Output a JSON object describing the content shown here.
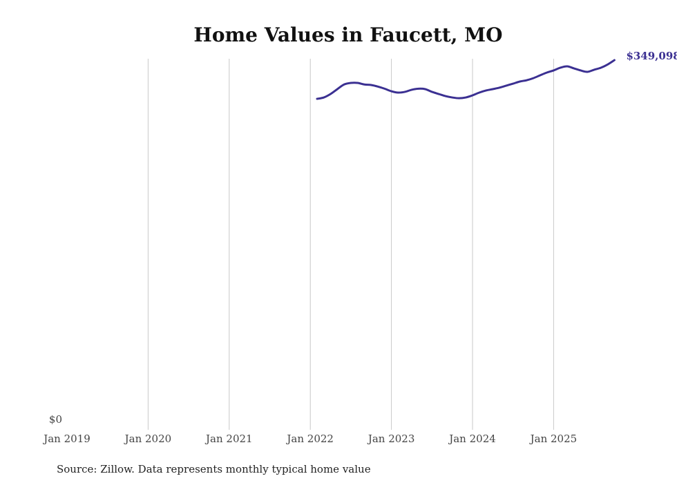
{
  "chart_data": {
    "type": "line",
    "title": "Home Values in Faucett, MO",
    "source": "Source: Zillow. Data represents monthly typical home value",
    "xlabel": "",
    "ylabel": "",
    "x_ticks": [
      "Jan 2019",
      "Jan 2020",
      "Jan 2021",
      "Jan 2022",
      "Jan 2023",
      "Jan 2024",
      "Jan 2025"
    ],
    "y_ticks": [
      "$0"
    ],
    "xlim": [
      "2019-01",
      "2025-10"
    ],
    "ylim": [
      0,
      350000
    ],
    "grid": "vertical",
    "series": [
      {
        "name": "Typical home value",
        "color": "#3b3092",
        "start": "2022-02",
        "end_label": "$349,098",
        "values": [
          312400,
          313700,
          317000,
          321600,
          326000,
          327500,
          327500,
          326000,
          325500,
          324000,
          322000,
          319600,
          318300,
          319000,
          321000,
          322000,
          321600,
          319000,
          317000,
          315000,
          313700,
          313000,
          313700,
          315700,
          318300,
          320300,
          321600,
          323000,
          324900,
          326800,
          328800,
          330000,
          332000,
          334700,
          337300,
          339300,
          341900,
          343200,
          341300,
          339300,
          338000,
          340000,
          341900,
          345000,
          349098
        ]
      }
    ]
  }
}
